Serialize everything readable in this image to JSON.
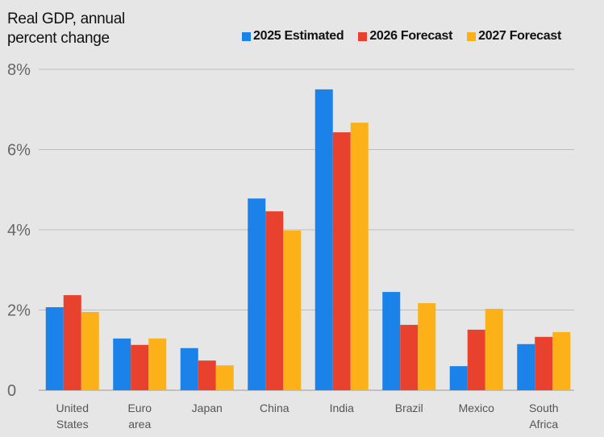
{
  "chart_data": {
    "type": "bar",
    "title": "Real GDP, annual percent change",
    "title_lines": [
      "Real GDP, annual",
      "percent change"
    ],
    "categories": [
      [
        "United",
        "States"
      ],
      [
        "Euro",
        "area"
      ],
      [
        "Japan"
      ],
      [
        "China"
      ],
      [
        "India"
      ],
      [
        "Brazil"
      ],
      [
        "Mexico"
      ],
      [
        "South",
        "Africa"
      ]
    ],
    "series": [
      {
        "name": "2025 Estimated",
        "color": "#1a82e8",
        "values": [
          2.07,
          1.29,
          1.05,
          4.78,
          7.5,
          2.45,
          0.6,
          1.15
        ]
      },
      {
        "name": "2026 Forecast",
        "color": "#e8412e",
        "values": [
          2.37,
          1.13,
          0.74,
          4.46,
          6.43,
          1.63,
          1.51,
          1.33
        ]
      },
      {
        "name": "2027 Forecast",
        "color": "#fbb117",
        "values": [
          1.95,
          1.29,
          0.62,
          3.98,
          6.67,
          2.17,
          2.03,
          1.45
        ]
      }
    ],
    "yticks": [
      "0",
      "2%",
      "4%",
      "6%",
      "8%"
    ],
    "ytick_values": [
      0,
      2,
      4,
      6,
      8
    ],
    "ylim": [
      0,
      8
    ],
    "grid": true,
    "legend": "top-right"
  }
}
